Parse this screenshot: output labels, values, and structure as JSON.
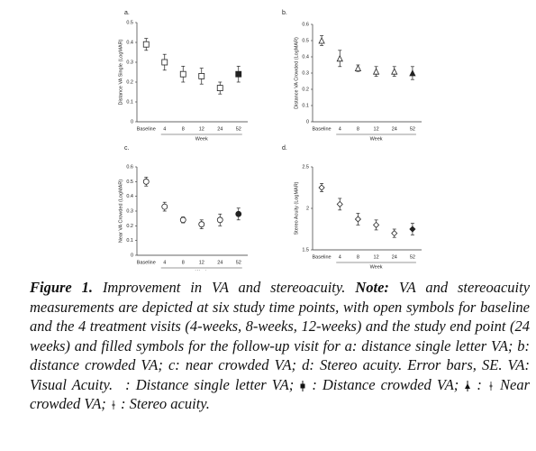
{
  "chart_data": [
    {
      "type": "point",
      "panel": "a.",
      "ylabel": "Distance VA Single (LogMAR)",
      "xlabel": "Week",
      "marker": "square",
      "color": "#222",
      "categories": [
        "Baseline",
        "4",
        "8",
        "12",
        "24",
        "52"
      ],
      "values": [
        0.39,
        0.3,
        0.24,
        0.23,
        0.17,
        0.24
      ],
      "errors": [
        0.03,
        0.04,
        0.04,
        0.04,
        0.03,
        0.04
      ],
      "filled": [
        false,
        false,
        false,
        false,
        false,
        true
      ],
      "ylim": [
        0,
        0.5
      ],
      "yticks": [
        0,
        0.1,
        0.2,
        0.3,
        0.4,
        0.5
      ]
    },
    {
      "type": "point",
      "panel": "b.",
      "ylabel": "Distance VA Crowded (LogMAR)",
      "xlabel": "Week",
      "marker": "triangle",
      "color": "#222",
      "categories": [
        "Baseline",
        "4",
        "8",
        "12",
        "24",
        "52"
      ],
      "values": [
        0.5,
        0.39,
        0.33,
        0.31,
        0.31,
        0.3
      ],
      "errors": [
        0.03,
        0.05,
        0.02,
        0.03,
        0.03,
        0.04
      ],
      "filled": [
        false,
        false,
        false,
        false,
        false,
        true
      ],
      "ylim": [
        0,
        0.6
      ],
      "yticks": [
        0,
        0.1,
        0.2,
        0.3,
        0.4,
        0.5,
        0.6
      ]
    },
    {
      "type": "point",
      "panel": "c.",
      "ylabel": "Near VA Crowded (LogMAR)",
      "xlabel": "Week",
      "marker": "circle",
      "color": "#222",
      "categories": [
        "Baseline",
        "4",
        "8",
        "12",
        "24",
        "52"
      ],
      "values": [
        0.5,
        0.33,
        0.24,
        0.21,
        0.24,
        0.28
      ],
      "errors": [
        0.03,
        0.03,
        0.02,
        0.03,
        0.04,
        0.04
      ],
      "filled": [
        false,
        false,
        false,
        false,
        false,
        true
      ],
      "ylim": [
        0,
        0.6
      ],
      "yticks": [
        0,
        0.1,
        0.2,
        0.3,
        0.4,
        0.5,
        0.6
      ]
    },
    {
      "type": "point",
      "panel": "d.",
      "ylabel": "Stereo Acuity (LogMAR)",
      "xlabel": "Week",
      "marker": "diamond",
      "color": "#222",
      "categories": [
        "Baseline",
        "4",
        "8",
        "12",
        "24",
        "52"
      ],
      "values": [
        2.25,
        2.05,
        1.87,
        1.8,
        1.7,
        1.75
      ],
      "errors": [
        0.05,
        0.07,
        0.07,
        0.06,
        0.05,
        0.07
      ],
      "filled": [
        false,
        false,
        false,
        false,
        false,
        true
      ],
      "ylim": [
        1.5,
        2.5
      ],
      "yticks": [
        1.5,
        2,
        2.5
      ]
    }
  ],
  "caption": {
    "figure": "Figure 1.",
    "title": "Improvement in VA and stereoacuity.",
    "note_label": "Note:",
    "note": "VA and stereoacuity measurements are depicted at six study time points, with open symbols for baseline and the 4 treatment visits (4-weeks, 8-weeks, 12-weeks) and the study end point (24 weeks) and filled symbols for the follow-up visit for a:  distance single letter VA; b: distance crowded VA; c: near crowded VA; d: Stereo acuity. Error bars, SE. VA: Visual Acuity.",
    "legend": [
      ": Distance single letter VA;",
      ": Distance crowded VA;",
      ":",
      "Near crowded VA;",
      ": Stereo acuity."
    ]
  }
}
